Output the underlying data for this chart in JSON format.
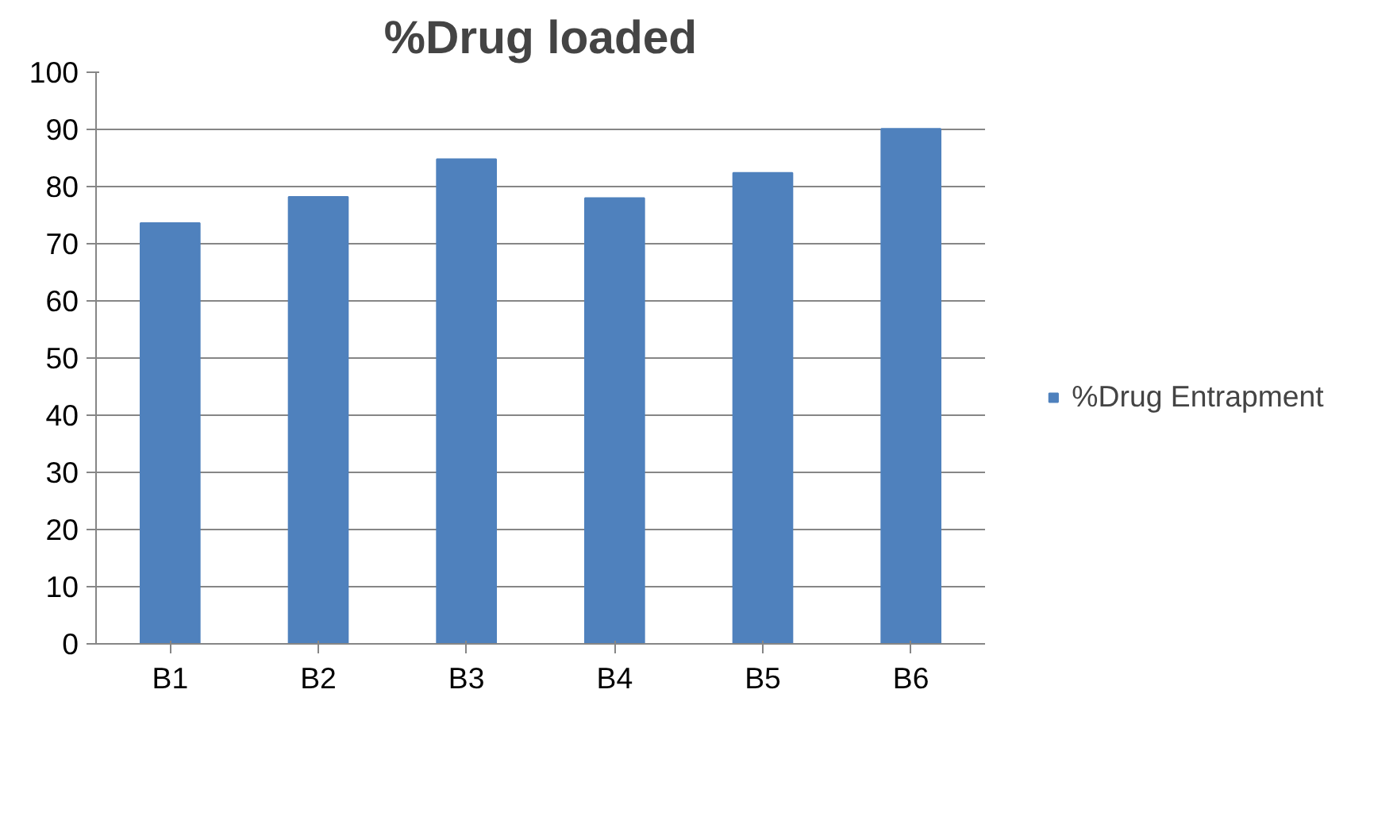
{
  "chart_data": {
    "type": "bar",
    "title": "%Drug loaded",
    "categories": [
      "B1",
      "B2",
      "B3",
      "B4",
      "B5",
      "B6"
    ],
    "series": [
      {
        "name": "%Drug Entrapment",
        "color": "#4f81bd",
        "values": [
          73.6,
          78.2,
          84.8,
          78.0,
          82.4,
          90.1
        ]
      }
    ],
    "ylim": [
      0,
      100
    ],
    "yticks": [
      0,
      10,
      20,
      30,
      40,
      50,
      60,
      70,
      80,
      90,
      100
    ],
    "grid": "y",
    "legend": "right"
  }
}
